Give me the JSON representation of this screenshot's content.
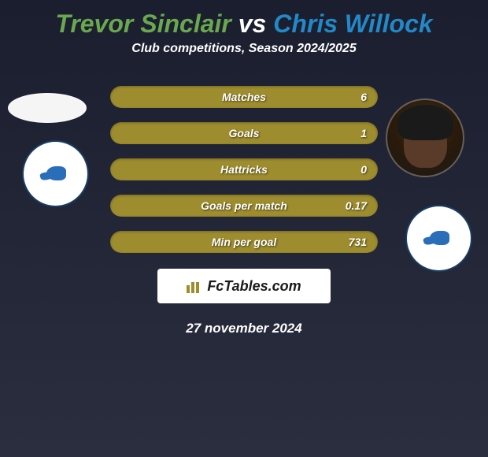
{
  "title": {
    "player1": "Trevor Sinclair",
    "vs": " vs ",
    "player2": "Chris Willock",
    "player1_color": "#6aa84f",
    "vs_color": "#ffffff",
    "player2_color": "#2388c7",
    "fontsize": 32
  },
  "subtitle": "Club competitions, Season 2024/2025",
  "stats": [
    {
      "label": "Matches",
      "value_right": "6"
    },
    {
      "label": "Goals",
      "value_right": "1"
    },
    {
      "label": "Hattricks",
      "value_right": "0"
    },
    {
      "label": "Goals per match",
      "value_right": "0.17"
    },
    {
      "label": "Min per goal",
      "value_right": "731"
    }
  ],
  "stat_bar": {
    "background_color": "#9e8d2e",
    "text_color": "#ffffff",
    "height": 28,
    "border_radius": 14,
    "fontsize": 14
  },
  "footer": {
    "brand": "FcTables.com",
    "brand_bg": "#ffffff",
    "icon_color": "#9e8d2e"
  },
  "date": "27 november 2024",
  "background": {
    "gradient_start": "#1a1e2e",
    "gradient_end": "#2a2e3e"
  },
  "avatars": {
    "left": {
      "type": "placeholder-ellipse",
      "bg": "#f5f5f5"
    },
    "right": {
      "type": "face-photo",
      "skin": "#5a3a28",
      "hair": "#1a1a1a"
    }
  },
  "club_badge": {
    "bg": "#ffffff",
    "border": "#1a3d66",
    "bird_color": "#2a6db8"
  }
}
